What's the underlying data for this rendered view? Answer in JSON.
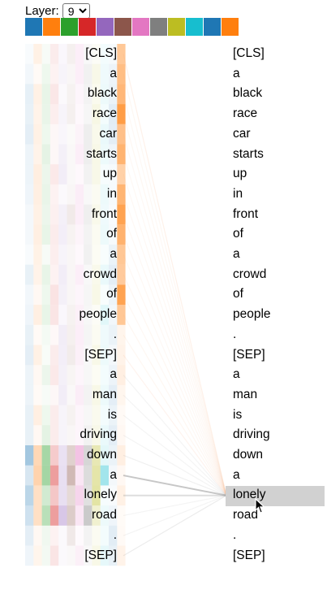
{
  "layer": {
    "label": "Layer:",
    "selected": "9"
  },
  "head_colors": [
    "#1f77b4",
    "#ff7f0e",
    "#2ca02c",
    "#d62728",
    "#9467bd",
    "#8c564b",
    "#e377c2",
    "#7f7f7f",
    "#bcbd22",
    "#17becf",
    "#1f77b4",
    "#ff7f0e"
  ],
  "left_tokens": [
    "[CLS]",
    "a",
    "black",
    "race",
    "car",
    "starts",
    "up",
    "in",
    "front",
    "of",
    "a",
    "crowd",
    "of",
    "people",
    ".",
    "[SEP]",
    "a",
    "man",
    "is",
    "driving",
    "down",
    "a",
    "lonely",
    "road",
    ".",
    "[SEP]"
  ],
  "right_tokens": [
    "[CLS]",
    "a",
    "black",
    "race",
    "car",
    "starts",
    "up",
    "in",
    "front",
    "of",
    "a",
    "crowd",
    "of",
    "people",
    ".",
    "[SEP]",
    "a",
    "man",
    "is",
    "driving",
    "down",
    "a",
    "lonely",
    "road",
    ".",
    "[SEP]"
  ],
  "selected_right_token": "lonely",
  "attention_to_selected": [
    0.1,
    0.06,
    0.05,
    0.06,
    0.05,
    0.05,
    0.05,
    0.05,
    0.05,
    0.05,
    0.05,
    0.06,
    0.05,
    0.06,
    0.06,
    0.08,
    0.06,
    0.06,
    0.06,
    0.06,
    0.08,
    0.3,
    0.18,
    0.06,
    0.06,
    0.1
  ]
}
